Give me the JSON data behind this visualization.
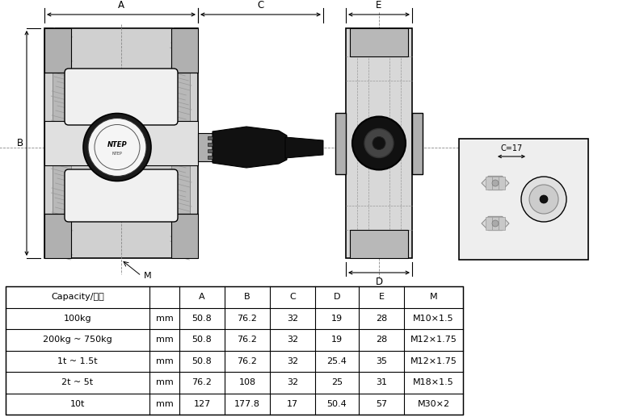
{
  "fig_width": 7.97,
  "fig_height": 5.17,
  "dpi": 100,
  "bg_color": "#ffffff",
  "table_headers": [
    "Capacity/量程",
    "",
    "A",
    "B",
    "C",
    "D",
    "E",
    "M"
  ],
  "table_rows": [
    [
      "100kg",
      "mm",
      "50.8",
      "76.2",
      "32",
      "19",
      "28",
      "M10×1.5"
    ],
    [
      "200kg ~ 750kg",
      "mm",
      "50.8",
      "76.2",
      "32",
      "19",
      "28",
      "M12×1.75"
    ],
    [
      "1t ~ 1.5t",
      "mm",
      "50.8",
      "76.2",
      "32",
      "25.4",
      "35",
      "M12×1.75"
    ],
    [
      "2t ~ 5t",
      "mm",
      "76.2",
      "108",
      "32",
      "25",
      "31",
      "M18×1.5"
    ],
    [
      "10t",
      "mm",
      "127",
      "177.8",
      "17",
      "50.4",
      "57",
      "M30×2"
    ]
  ],
  "body_fill": "#d0d0d0",
  "body_fill_light": "#e8e8e8",
  "body_fill_mid": "#c0c0c0",
  "flange_fill": "#b8b8b8",
  "groove_fill": "#a8a8a8",
  "boss_fill": "#f0f0f0",
  "cable_fill": "#1a1a1a",
  "sq_fill": "#ececec",
  "dim_color": "#000000",
  "grid_color": "#888888"
}
